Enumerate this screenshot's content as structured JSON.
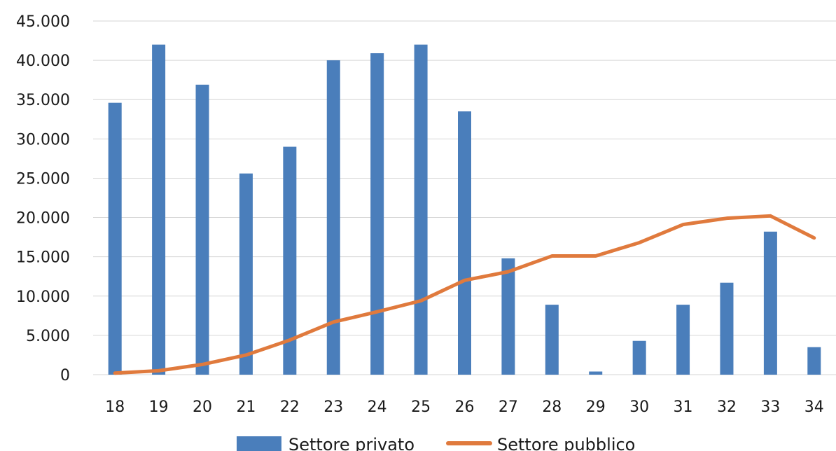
{
  "chart_data": {
    "type": "bar",
    "categories": [
      "18",
      "19",
      "20",
      "21",
      "22",
      "23",
      "24",
      "25",
      "26",
      "27",
      "28",
      "29",
      "30",
      "31",
      "32",
      "33",
      "34"
    ],
    "series": [
      {
        "name": "Settore privato",
        "type": "bar",
        "color": "#4a7ebb",
        "values": [
          34600,
          42000,
          36900,
          25600,
          29000,
          40000,
          40900,
          42000,
          33500,
          14800,
          8900,
          400,
          4300,
          8900,
          11700,
          18200,
          3500
        ]
      },
      {
        "name": "Settore pubblico",
        "type": "line",
        "color": "#e07a3d",
        "values": [
          200,
          500,
          1300,
          2500,
          4400,
          6700,
          8000,
          9400,
          12000,
          13100,
          15100,
          15100,
          16800,
          19100,
          19900,
          20200,
          17400
        ]
      }
    ],
    "y_ticks": [
      "0",
      "5.000",
      "10.000",
      "15.000",
      "20.000",
      "25.000",
      "30.000",
      "35.000",
      "40.000",
      "45.000"
    ],
    "ylim": [
      0,
      45000
    ],
    "grid": true,
    "legend_position": "bottom"
  }
}
